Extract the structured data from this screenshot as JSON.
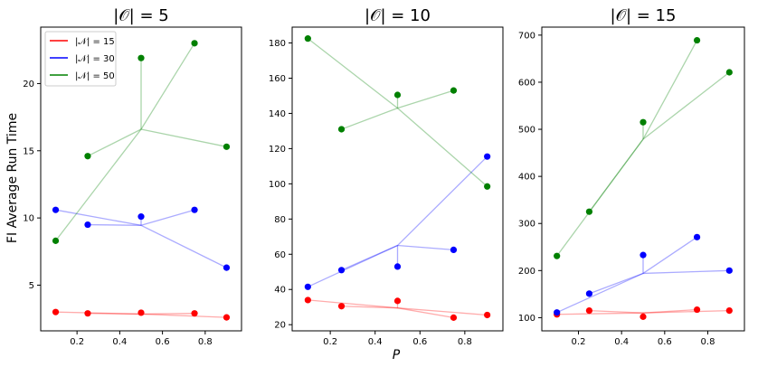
{
  "figure": {
    "ylabel": "FI Average Run Time",
    "xlabel": "P"
  },
  "legend": [
    {
      "label": "|𝒩| = 15",
      "color": "#ff0000"
    },
    {
      "label": "|𝒩| = 30",
      "color": "#0000ff"
    },
    {
      "label": "|𝒩| = 50",
      "color": "#008000"
    }
  ],
  "chart_data": [
    {
      "type": "scatter",
      "title": "|𝒪| = 5",
      "xlim": [
        0.03,
        0.97
      ],
      "ylim": [
        1.6,
        24.2
      ],
      "xticks": [
        0.2,
        0.4,
        0.6,
        0.8
      ],
      "xtick_labels": [
        "0.2",
        "0.4",
        "0.6",
        "0.8"
      ],
      "yticks": [
        5,
        10,
        15,
        20
      ],
      "ytick_labels": [
        "5",
        "10",
        "15",
        "20"
      ],
      "series": [
        {
          "name": "|𝒩| = 15",
          "color": "#ff0000",
          "x": [
            0.1,
            0.25,
            0.5,
            0.75,
            0.9
          ],
          "y": [
            3.0,
            2.9,
            2.95,
            2.9,
            2.6
          ],
          "hub": [
            0.5,
            2.85
          ]
        },
        {
          "name": "|𝒩| = 30",
          "color": "#0000ff",
          "x": [
            0.1,
            0.25,
            0.5,
            0.75,
            0.9
          ],
          "y": [
            10.6,
            9.5,
            10.1,
            10.6,
            6.3
          ],
          "hub": [
            0.5,
            9.45
          ]
        },
        {
          "name": "|𝒩| = 50",
          "color": "#008000",
          "x": [
            0.1,
            0.25,
            0.5,
            0.75,
            0.9
          ],
          "y": [
            8.3,
            14.6,
            21.9,
            23.0,
            15.3
          ],
          "hub": [
            0.5,
            16.6
          ]
        }
      ]
    },
    {
      "type": "scatter",
      "title": "|𝒪| = 10",
      "xlim": [
        0.03,
        0.97
      ],
      "ylim": [
        16.5,
        189
      ],
      "xticks": [
        0.2,
        0.4,
        0.6,
        0.8
      ],
      "xtick_labels": [
        "0.2",
        "0.4",
        "0.6",
        "0.8"
      ],
      "yticks": [
        20,
        40,
        60,
        80,
        100,
        120,
        140,
        160,
        180
      ],
      "ytick_labels": [
        "20",
        "40",
        "60",
        "80",
        "100",
        "120",
        "140",
        "160",
        "180"
      ],
      "series": [
        {
          "name": "|𝒩| = 15",
          "color": "#ff0000",
          "x": [
            0.1,
            0.25,
            0.5,
            0.75,
            0.9
          ],
          "y": [
            34.0,
            30.5,
            33.5,
            24.0,
            25.5
          ],
          "hub": [
            0.5,
            29.5
          ]
        },
        {
          "name": "|𝒩| = 30",
          "color": "#0000ff",
          "x": [
            0.1,
            0.25,
            0.5,
            0.75,
            0.9
          ],
          "y": [
            41.5,
            51.0,
            53.0,
            62.5,
            115.5
          ],
          "hub": [
            0.5,
            65.0
          ]
        },
        {
          "name": "|𝒩| = 50",
          "color": "#008000",
          "x": [
            0.1,
            0.25,
            0.5,
            0.75,
            0.9
          ],
          "y": [
            182.5,
            131.0,
            150.5,
            153.0,
            98.5
          ],
          "hub": [
            0.5,
            143.0
          ]
        }
      ]
    },
    {
      "type": "scatter",
      "title": "|𝒪| = 15",
      "xlim": [
        0.03,
        0.97
      ],
      "ylim": [
        72,
        717
      ],
      "xticks": [
        0.2,
        0.4,
        0.6,
        0.8
      ],
      "xtick_labels": [
        "0.2",
        "0.4",
        "0.6",
        "0.8"
      ],
      "yticks": [
        100,
        200,
        300,
        400,
        500,
        600,
        700
      ],
      "ytick_labels": [
        "100",
        "200",
        "300",
        "400",
        "500",
        "600",
        "700"
      ],
      "series": [
        {
          "name": "|𝒩| = 15",
          "color": "#ff0000",
          "x": [
            0.1,
            0.25,
            0.5,
            0.75,
            0.9
          ],
          "y": [
            107,
            115,
            102,
            117,
            115
          ],
          "hub": [
            0.5,
            110
          ]
        },
        {
          "name": "|𝒩| = 30",
          "color": "#0000ff",
          "x": [
            0.1,
            0.25,
            0.5,
            0.75,
            0.9
          ],
          "y": [
            111,
            151,
            233,
            271,
            200
          ],
          "hub": [
            0.5,
            194
          ]
        },
        {
          "name": "|𝒩| = 50",
          "color": "#008000",
          "x": [
            0.1,
            0.25,
            0.5,
            0.75,
            0.9
          ],
          "y": [
            231,
            325,
            515,
            689,
            621
          ],
          "hub": [
            0.5,
            479
          ]
        }
      ]
    }
  ]
}
